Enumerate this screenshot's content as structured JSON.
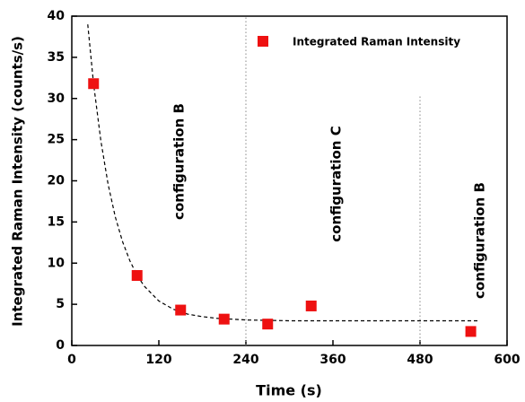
{
  "chart_data": {
    "type": "scatter",
    "x_label": "Time (s)",
    "y_label": "Integrated Raman Intensity (counts/s)",
    "xlim": [
      0,
      600
    ],
    "xticks": [
      0,
      120,
      240,
      360,
      480,
      600
    ],
    "ylim": [
      0,
      40
    ],
    "yticks": [
      0,
      5,
      10,
      15,
      20,
      25,
      30,
      35,
      40
    ],
    "legend": "upper right",
    "series": [
      {
        "name": "Integrated Raman Intensity",
        "color": "#ee1111",
        "x": [
          30,
          90,
          150,
          210,
          270,
          330,
          550
        ],
        "values": [
          31.8,
          8.5,
          4.3,
          3.2,
          2.6,
          4.8,
          1.7
        ]
      }
    ],
    "fit_line": {
      "color": "#000000",
      "style": "dashed",
      "x": [
        22,
        30,
        40,
        50,
        60,
        70,
        80,
        90,
        100,
        120,
        140,
        160,
        180,
        200,
        240,
        300,
        360,
        420,
        480,
        560
      ],
      "values": [
        39.0,
        31.8,
        24.9,
        19.6,
        15.6,
        12.6,
        10.3,
        8.5,
        7.2,
        5.4,
        4.4,
        3.8,
        3.5,
        3.3,
        3.1,
        3.0,
        3.0,
        3.0,
        3.0,
        3.0
      ]
    },
    "vlines": [
      {
        "x": 240,
        "y": [
          0,
          40
        ]
      },
      {
        "x": 480,
        "y": [
          0,
          30.5
        ]
      }
    ],
    "annotations": [
      "configuration B",
      "configuration C",
      "configuration B"
    ]
  }
}
